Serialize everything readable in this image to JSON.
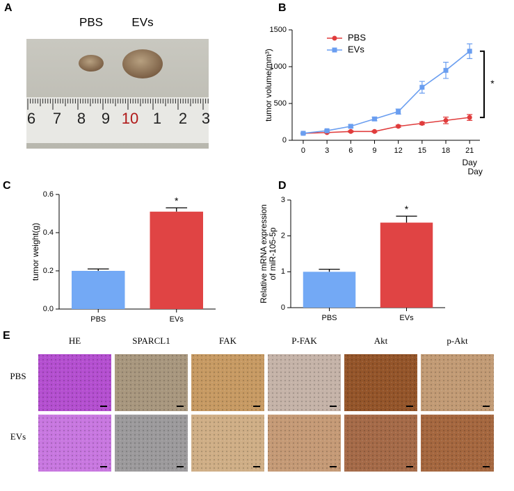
{
  "panel_labels": [
    "A",
    "B",
    "C",
    "D",
    "E"
  ],
  "photo": {
    "labels": [
      "PBS",
      "EVs"
    ],
    "ruler_numbers": [
      "6",
      "7",
      "8",
      "9",
      "10",
      "1",
      "2",
      "3"
    ]
  },
  "chart_data": [
    {
      "type": "line",
      "ylabel": "tumor volume(mm³)",
      "xlabels": [
        "Day",
        "Day"
      ],
      "x": [
        0,
        3,
        6,
        9,
        12,
        15,
        18,
        21
      ],
      "series": [
        {
          "name": "PBS",
          "color": "#e03c3c",
          "values": [
            95,
            105,
            120,
            120,
            190,
            230,
            270,
            310
          ],
          "errors": [
            8,
            8,
            10,
            10,
            15,
            18,
            45,
            40
          ]
        },
        {
          "name": "EVs",
          "color": "#6a9ef0",
          "values": [
            95,
            130,
            190,
            290,
            390,
            720,
            950,
            1210
          ],
          "errors": [
            8,
            12,
            18,
            25,
            35,
            80,
            110,
            100
          ]
        }
      ],
      "xlim": [
        -1.4,
        22.3
      ],
      "xticks": [
        0,
        3,
        6,
        9,
        12,
        15,
        18,
        21
      ],
      "ylim": [
        0,
        1500
      ],
      "yticks": [
        0,
        500,
        1000,
        1500
      ],
      "legend": "upper left",
      "annotation": "*"
    },
    {
      "type": "bar",
      "ylabel": "tumor weight(g)",
      "categories": [
        "PBS",
        "EVs"
      ],
      "values": [
        0.2,
        0.51
      ],
      "errors": [
        0.01,
        0.02
      ],
      "colors": [
        "#73a9f5",
        "#e04444"
      ],
      "ylim": [
        0,
        0.6
      ],
      "yticks": [
        {
          "value": 0,
          "label": "0.0"
        },
        {
          "value": 0.2,
          "label": "0.2"
        },
        0.4,
        0.6
      ],
      "annotation": "*"
    },
    {
      "type": "bar",
      "ylabel": [
        "Relative mRNA expression",
        "of miR-105-5p"
      ],
      "categories": [
        "PBS",
        "EVs"
      ],
      "values": [
        1.0,
        2.37
      ],
      "errors": [
        0.07,
        0.18
      ],
      "colors": [
        "#73a9f5",
        "#e04444"
      ],
      "ylim": [
        0,
        3
      ],
      "yticks": [
        0,
        1,
        2,
        3
      ],
      "annotation": "*"
    }
  ],
  "histology": {
    "columns": [
      "HE",
      "SPARCL1",
      "FAK",
      "P-FAK",
      "Akt",
      "p-Akt"
    ],
    "rows": [
      "PBS",
      "EVs"
    ]
  }
}
